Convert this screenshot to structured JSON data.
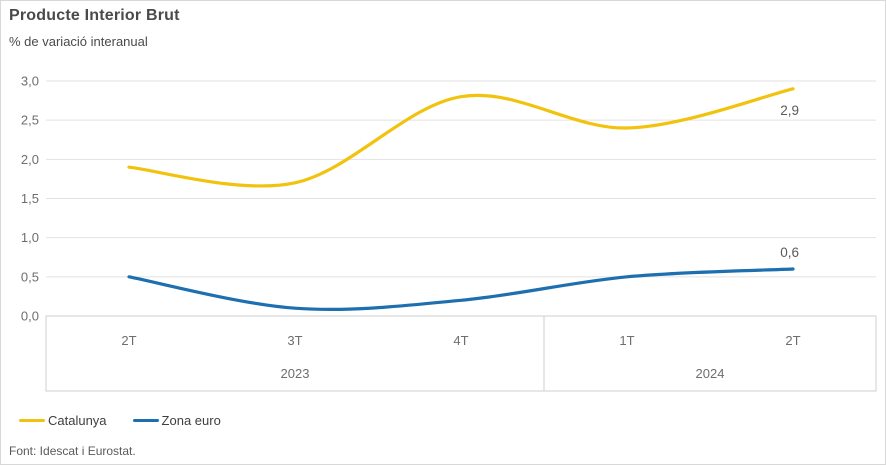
{
  "chart_data": {
    "type": "line",
    "title": "Producte Interior Brut",
    "subtitle": "% de variació interanual",
    "categories": [
      "2T",
      "3T",
      "4T",
      "1T",
      "2T"
    ],
    "year_groups": [
      {
        "label": "2023",
        "span": 3
      },
      {
        "label": "2024",
        "span": 2
      }
    ],
    "series": [
      {
        "name": "Catalunya",
        "color": "#F2C30E",
        "values": [
          1.9,
          1.7,
          2.8,
          2.4,
          2.9
        ],
        "end_label": "2,9"
      },
      {
        "name": "Zona euro",
        "color": "#1D6FB0",
        "values": [
          0.5,
          0.1,
          0.2,
          0.5,
          0.6
        ],
        "end_label": "0,6"
      }
    ],
    "ylim": [
      0,
      3
    ],
    "yticks": [
      {
        "value": 0.0,
        "label": "0,0"
      },
      {
        "value": 0.5,
        "label": "0,5"
      },
      {
        "value": 1.0,
        "label": "1,0"
      },
      {
        "value": 1.5,
        "label": "1,5"
      },
      {
        "value": 2.0,
        "label": "2,0"
      },
      {
        "value": 2.5,
        "label": "2,5"
      },
      {
        "value": 3.0,
        "label": "3,0"
      }
    ],
    "grid": true,
    "legend_position": "bottom-left",
    "source": "Font: Idescat i Eurostat.",
    "colors": {
      "grid": "#e2e2e2",
      "axis_box": "#cfcfcf",
      "axis_text": "#6e6e6e",
      "data_label_text": "#5a5a5a"
    }
  }
}
